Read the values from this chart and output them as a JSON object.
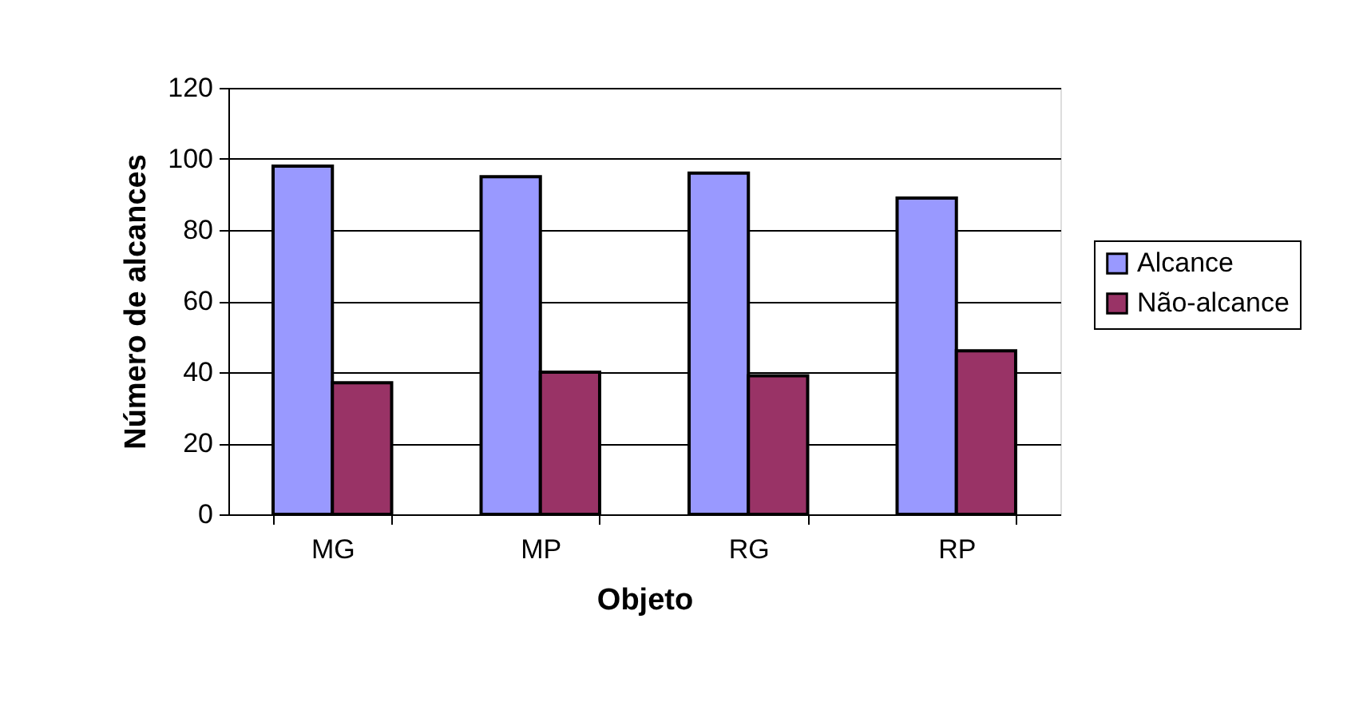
{
  "chart_data": {
    "type": "bar",
    "xlabel": "Objeto",
    "ylabel": "Número de alcances",
    "categories": [
      "MG",
      "MP",
      "RG",
      "RP"
    ],
    "series": [
      {
        "name": "Alcance",
        "color": "#9999ff",
        "values": [
          98,
          95,
          96,
          89
        ]
      },
      {
        "name": "Não-alcance",
        "color": "#993366",
        "values": [
          37,
          40,
          39,
          46
        ]
      }
    ],
    "ylim": [
      0,
      120
    ],
    "yticks": [
      0,
      20,
      40,
      60,
      80,
      100,
      120
    ],
    "grid": "y",
    "legend": "right"
  }
}
